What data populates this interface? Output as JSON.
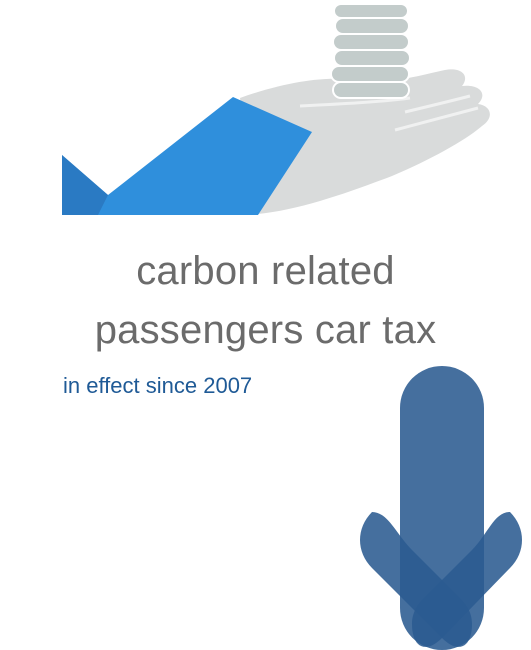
{
  "headline": {
    "line1": "carbon related",
    "line2": "passengers car tax"
  },
  "subtitle": "in effect since 2007",
  "icons": {
    "hand": "hand-holding-coins-icon",
    "coins": "coin-stack-icon",
    "arrow": "down-arrow-icon"
  },
  "colors": {
    "sleeve": "#2f8fdc",
    "sleeve_dark": "#2a78c0",
    "hand": "#d9dbdb",
    "coins": "#c3cccb",
    "headline_text": "#6b6b6b",
    "subtitle_text": "#1f5a96",
    "arrow": "#2b5b91"
  }
}
